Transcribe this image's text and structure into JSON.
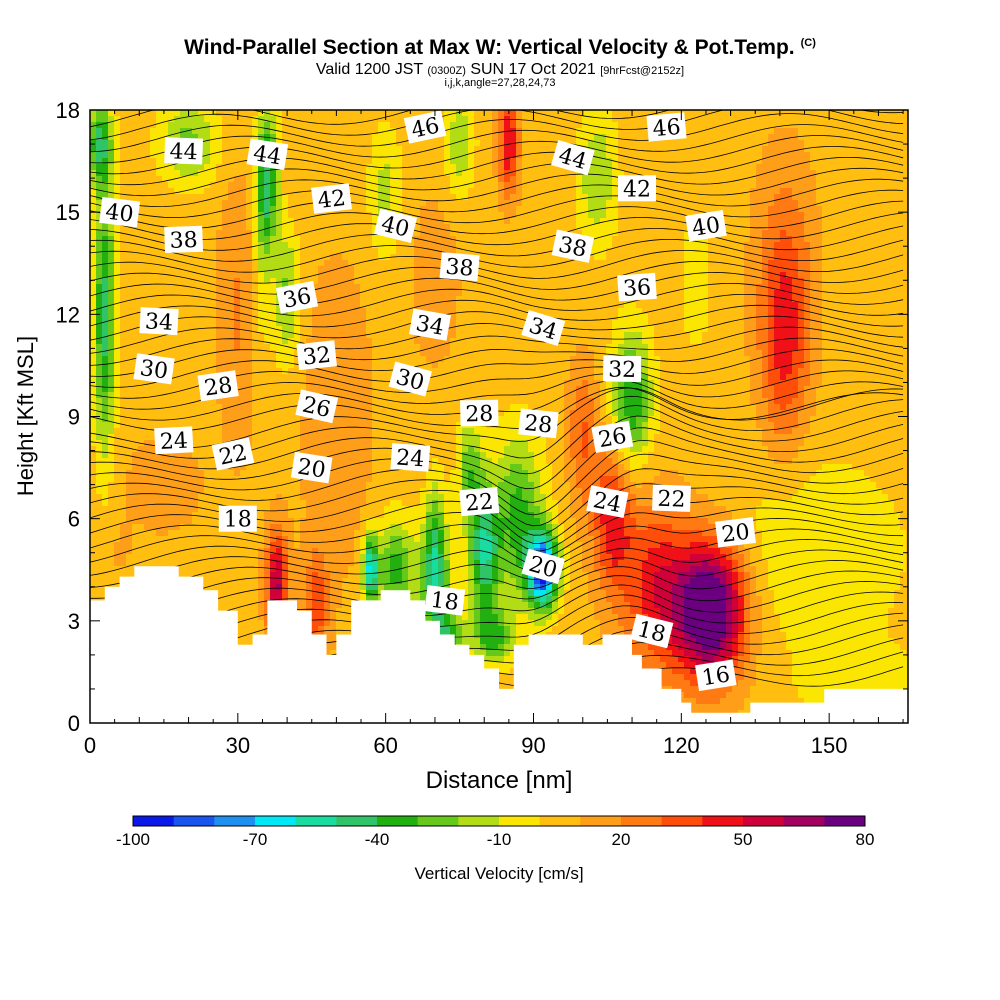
{
  "chart_data": {
    "type": "heatmap",
    "title": "Wind-Parallel Section at Max W: Vertical Velocity & Pot.Temp.",
    "title_tag": "(C)",
    "subtitle": {
      "valid": "Valid 1200 JST",
      "utc": "(0300Z)",
      "date": "SUN 17 Oct 2021",
      "forecast": "[9hrFcst@2152z]"
    },
    "indices": "i,j,k,angle=27,28,24,73",
    "xlabel": "Distance [nm]",
    "ylabel": "Height [Kft MSL]",
    "xlim": [
      0,
      166
    ],
    "ylim": [
      0,
      18
    ],
    "x_ticks": [
      0,
      30,
      60,
      90,
      120,
      150
    ],
    "y_ticks": [
      0,
      3,
      6,
      9,
      12,
      15,
      18
    ],
    "colorbar": {
      "label": "Vertical Velocity [cm/s]",
      "tick_labels": [
        -100,
        -70,
        -40,
        -10,
        20,
        50,
        80
      ],
      "levels": [
        -100,
        -90,
        -80,
        -70,
        -60,
        -50,
        -40,
        -30,
        -20,
        -10,
        0,
        10,
        20,
        30,
        40,
        50,
        60,
        70,
        80
      ],
      "colors": [
        "#0a18e8",
        "#1a55f0",
        "#1e90f0",
        "#00e8f5",
        "#18dca0",
        "#30c468",
        "#22b010",
        "#66c818",
        "#b2dc14",
        "#fae600",
        "#ffbe10",
        "#ff9e18",
        "#ff7a12",
        "#ff4e0a",
        "#f01018",
        "#d00038",
        "#a20060",
        "#6a0080"
      ]
    },
    "theta_contour_labels": [
      {
        "value": "46",
        "x": 68,
        "y": 17.5
      },
      {
        "value": "46",
        "x": 117,
        "y": 17.5
      },
      {
        "value": "44",
        "x": 19,
        "y": 16.8
      },
      {
        "value": "44",
        "x": 36,
        "y": 16.7
      },
      {
        "value": "44",
        "x": 98,
        "y": 16.6
      },
      {
        "value": "42",
        "x": 49,
        "y": 15.4
      },
      {
        "value": "42",
        "x": 111,
        "y": 15.7
      },
      {
        "value": "40",
        "x": 6,
        "y": 15.0
      },
      {
        "value": "40",
        "x": 62,
        "y": 14.6
      },
      {
        "value": "40",
        "x": 125,
        "y": 14.6
      },
      {
        "value": "38",
        "x": 19,
        "y": 14.2
      },
      {
        "value": "38",
        "x": 75,
        "y": 13.4
      },
      {
        "value": "38",
        "x": 98,
        "y": 14.0
      },
      {
        "value": "36",
        "x": 42,
        "y": 12.5
      },
      {
        "value": "36",
        "x": 111,
        "y": 12.8
      },
      {
        "value": "34",
        "x": 14,
        "y": 11.8
      },
      {
        "value": "34",
        "x": 69,
        "y": 11.7
      },
      {
        "value": "34",
        "x": 92,
        "y": 11.6
      },
      {
        "value": "32",
        "x": 46,
        "y": 10.8
      },
      {
        "value": "32",
        "x": 108,
        "y": 10.4
      },
      {
        "value": "30",
        "x": 13,
        "y": 10.4
      },
      {
        "value": "30",
        "x": 65,
        "y": 10.1
      },
      {
        "value": "28",
        "x": 26,
        "y": 9.9
      },
      {
        "value": "28",
        "x": 79,
        "y": 9.1
      },
      {
        "value": "28",
        "x": 91,
        "y": 8.8
      },
      {
        "value": "26",
        "x": 46,
        "y": 9.3
      },
      {
        "value": "26",
        "x": 106,
        "y": 8.4
      },
      {
        "value": "24",
        "x": 17,
        "y": 8.3
      },
      {
        "value": "24",
        "x": 65,
        "y": 7.8
      },
      {
        "value": "24",
        "x": 105,
        "y": 6.5
      },
      {
        "value": "22",
        "x": 29,
        "y": 7.9
      },
      {
        "value": "22",
        "x": 79,
        "y": 6.5
      },
      {
        "value": "22",
        "x": 118,
        "y": 6.6
      },
      {
        "value": "20",
        "x": 45,
        "y": 7.5
      },
      {
        "value": "20",
        "x": 92,
        "y": 4.6
      },
      {
        "value": "20",
        "x": 131,
        "y": 5.6
      },
      {
        "value": "18",
        "x": 30,
        "y": 6.0
      },
      {
        "value": "18",
        "x": 72,
        "y": 3.6
      },
      {
        "value": "18",
        "x": 114,
        "y": 2.7
      },
      {
        "value": "16",
        "x": 127,
        "y": 1.4
      }
    ],
    "terrain_profile": {
      "x": [
        0,
        3,
        3,
        6,
        6,
        9,
        9,
        18,
        18,
        23,
        23,
        26,
        26,
        30,
        30,
        33,
        33,
        36,
        36,
        42,
        42,
        45,
        45,
        48,
        48,
        50,
        50,
        53,
        53,
        59,
        59,
        65,
        65,
        68,
        68,
        71,
        71,
        74,
        74,
        77,
        77,
        80,
        80,
        83,
        83,
        86,
        86,
        89,
        89,
        100,
        100,
        104,
        104,
        110,
        110,
        112,
        112,
        116,
        116,
        120,
        120,
        122,
        122,
        125,
        125,
        134,
        134,
        146,
        146,
        149,
        149,
        152,
        152,
        166
      ],
      "y": [
        3.6,
        3.6,
        4.0,
        4.0,
        4.3,
        4.3,
        4.6,
        4.6,
        4.3,
        4.3,
        3.9,
        3.9,
        3.3,
        3.3,
        2.3,
        2.3,
        2.6,
        2.6,
        3.6,
        3.6,
        3.3,
        3.3,
        2.6,
        2.6,
        2.0,
        2.0,
        2.6,
        2.6,
        3.6,
        3.6,
        3.9,
        3.9,
        3.6,
        3.6,
        3.0,
        3.0,
        2.6,
        2.6,
        2.3,
        2.3,
        2.0,
        2.0,
        1.6,
        1.6,
        1.0,
        1.0,
        2.3,
        2.3,
        2.6,
        2.6,
        2.3,
        2.3,
        2.6,
        2.6,
        2.0,
        2.0,
        1.6,
        1.6,
        1.0,
        1.0,
        0.6,
        0.6,
        0.3,
        0.3,
        0.3,
        0.3,
        0.6,
        0.6,
        0.6,
        0.6,
        1.0,
        1.0,
        1.0,
        1.0
      ]
    }
  }
}
